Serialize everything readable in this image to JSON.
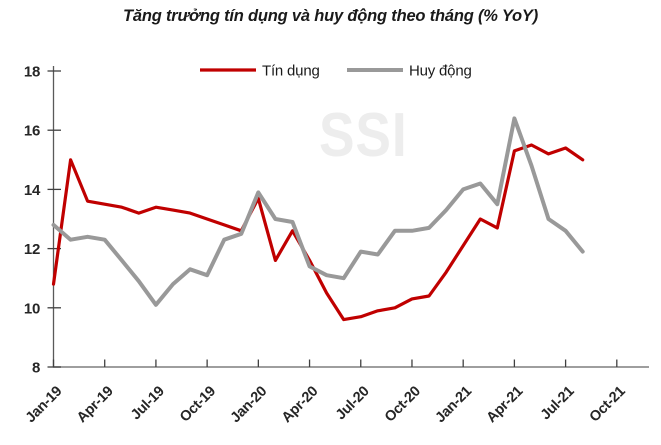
{
  "title": "Tăng trưởng tín dụng và huy động theo tháng (% YoY)",
  "watermark": "SSI",
  "chart_data": {
    "type": "line",
    "x": [
      "Jan-19",
      "Feb-19",
      "Mar-19",
      "Apr-19",
      "May-19",
      "Jun-19",
      "Jul-19",
      "Aug-19",
      "Sep-19",
      "Oct-19",
      "Nov-19",
      "Dec-19",
      "Jan-20",
      "Feb-20",
      "Mar-20",
      "Apr-20",
      "May-20",
      "Jun-20",
      "Jul-20",
      "Aug-20",
      "Sep-20",
      "Oct-20",
      "Nov-20",
      "Dec-20",
      "Jan-21",
      "Feb-21",
      "Mar-21",
      "Apr-21",
      "May-21",
      "Jun-21",
      "Jul-21",
      "Aug-21"
    ],
    "series": [
      {
        "name": "Tín dụng",
        "color": "#C00000",
        "stroke_width": 3.2,
        "values": [
          10.8,
          15.0,
          13.6,
          13.5,
          13.4,
          13.2,
          13.4,
          13.3,
          13.2,
          13.0,
          12.8,
          12.6,
          13.7,
          11.6,
          12.6,
          11.6,
          10.5,
          9.6,
          9.7,
          9.9,
          10.0,
          10.3,
          10.4,
          11.2,
          12.1,
          13.0,
          12.7,
          15.3,
          15.5,
          15.2,
          15.4,
          15.0
        ]
      },
      {
        "name": "Huy động",
        "color": "#999999",
        "stroke_width": 4,
        "values": [
          12.8,
          12.3,
          12.4,
          12.3,
          11.6,
          10.9,
          10.1,
          10.8,
          11.3,
          11.1,
          12.3,
          12.5,
          13.9,
          13.0,
          12.9,
          11.4,
          11.1,
          11.0,
          11.9,
          11.8,
          12.6,
          12.6,
          12.7,
          13.3,
          14.0,
          14.2,
          13.5,
          16.4,
          14.8,
          13.0,
          12.6,
          11.9
        ]
      }
    ],
    "xticks": [
      "Jan-19",
      "Apr-19",
      "Jul-19",
      "Oct-19",
      "Jan-20",
      "Apr-20",
      "Jul-20",
      "Oct-20",
      "Jan-21",
      "Apr-21",
      "Jul-21",
      "Oct-21"
    ],
    "yticks": [
      8,
      10,
      12,
      14,
      16,
      18
    ],
    "ylim": [
      8,
      18
    ],
    "grid": false,
    "legend_position": "top-center"
  },
  "style": {
    "y_axis_color": "#595959",
    "x_axis_color": "#7f7f7f",
    "tick_color": "#404040",
    "watermark_color": "#ededed"
  }
}
